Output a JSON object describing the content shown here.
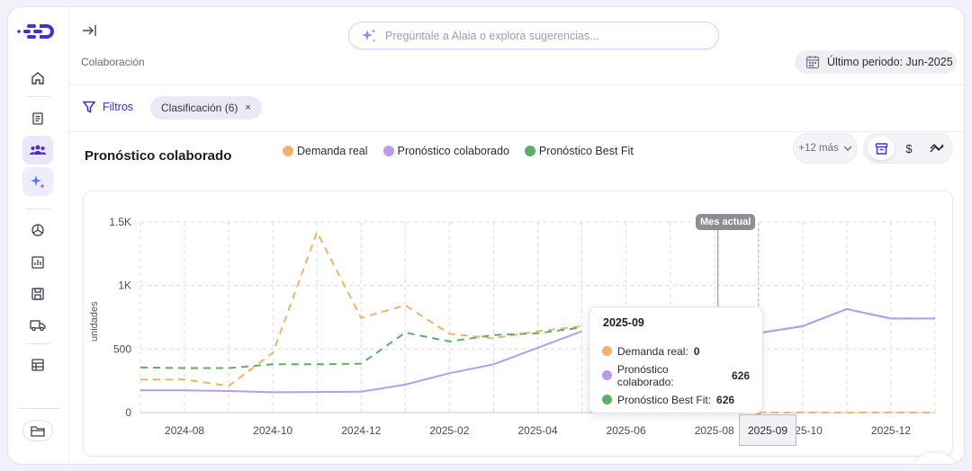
{
  "header": {
    "breadcrumb": "Colaboración",
    "search_placeholder": "Pregúntale a Alaia o explora sugerencias...",
    "period_label": "Último periodo: Jun-2025"
  },
  "filters": {
    "label": "Filtros",
    "chip_label": "Clasificación (6)",
    "chip_remove": "×"
  },
  "chart_header": {
    "title": "Pronóstico colaborado",
    "more_label": "+12 más",
    "toggles": [
      "units-icon",
      "currency-icon",
      "trend-icon"
    ],
    "currency_symbol": "$"
  },
  "colors": {
    "demanda": "#f1b36a",
    "colaborado": "#b89af0",
    "best_fit": "#5fae67",
    "accent": "#3d2db8"
  },
  "sidebar": {
    "icons": [
      "home-icon",
      "document-icon",
      "users-icon",
      "sparkles-icon",
      "pie-chart-icon",
      "bar-chart-icon",
      "save-icon",
      "truck-icon",
      "table-icon",
      "folder-icon"
    ],
    "active": "users-icon"
  },
  "tooltip": {
    "title": "2025-09",
    "rows": [
      {
        "label": "Demanda real:",
        "value": "0"
      },
      {
        "label": "Pronóstico colaborado:",
        "value": "626"
      },
      {
        "label": "Pronóstico Best Fit:",
        "value": "626"
      }
    ]
  },
  "marker": {
    "label": "Mes actual",
    "x_highlight": "2025-09"
  },
  "chart_data": {
    "type": "line",
    "ylabel": "unidades",
    "ylim": [
      0,
      1500
    ],
    "y_ticks": [
      "0",
      "500",
      "1K",
      "1.5K"
    ],
    "x_tick_labels": [
      "2024-08",
      "2024-10",
      "2024-12",
      "2025-02",
      "2025-04",
      "2025-06",
      "2025-08",
      "2025-10",
      "2025-12"
    ],
    "x": [
      "2024-07",
      "2024-08",
      "2024-09",
      "2024-10",
      "2024-11",
      "2024-12",
      "2025-01",
      "2025-02",
      "2025-03",
      "2025-04",
      "2025-05",
      "2025-06",
      "2025-07",
      "2025-08",
      "2025-09",
      "2025-10",
      "2025-11",
      "2025-12",
      "2026-01"
    ],
    "series": [
      {
        "name": "Demanda real",
        "style": "dashed",
        "values": [
          260,
          260,
          210,
          470,
          1420,
          745,
          845,
          620,
          585,
          640,
          680,
          null,
          0,
          0,
          0,
          0,
          0,
          0,
          0
        ]
      },
      {
        "name": "Pronóstico colaborado",
        "style": "solid",
        "values": [
          175,
          175,
          170,
          160,
          162,
          165,
          220,
          310,
          380,
          510,
          640,
          null,
          null,
          null,
          626,
          680,
          815,
          740,
          740
        ]
      },
      {
        "name": "Pronóstico Best Fit",
        "style": "dashed",
        "values": [
          355,
          350,
          350,
          380,
          380,
          385,
          630,
          560,
          610,
          625,
          670,
          null,
          null,
          null,
          626,
          680,
          815,
          740,
          740
        ]
      }
    ],
    "grid": true,
    "legend_position": "top"
  }
}
